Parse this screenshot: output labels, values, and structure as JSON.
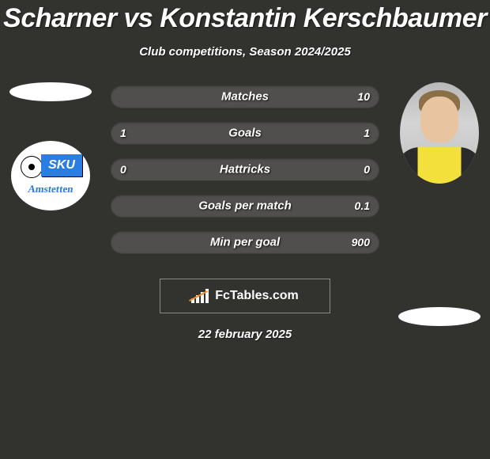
{
  "title": "Scharner vs Konstantin Kerschbaumer",
  "subtitle": "Club competitions, Season 2024/2025",
  "date": "22 february 2025",
  "footer": {
    "brand": "FcTables.com"
  },
  "left_team": {
    "badge_main": "SKU",
    "badge_sub": "Amstetten",
    "badge_bg": "#2a7de1"
  },
  "stats": {
    "rows": [
      {
        "label": "Matches",
        "left": "",
        "right": "10"
      },
      {
        "label": "Goals",
        "left": "1",
        "right": "1"
      },
      {
        "label": "Hattricks",
        "left": "0",
        "right": "0"
      },
      {
        "label": "Goals per match",
        "left": "",
        "right": "0.1"
      },
      {
        "label": "Min per goal",
        "left": "",
        "right": "900"
      }
    ],
    "bar_bg": "#504f4d",
    "text_color": "#ffffff"
  },
  "colors": {
    "page_bg": "#32322f",
    "oval": "#ffffff",
    "footer_border": "#8a8a86",
    "footer_accent": "#f08c2e"
  }
}
